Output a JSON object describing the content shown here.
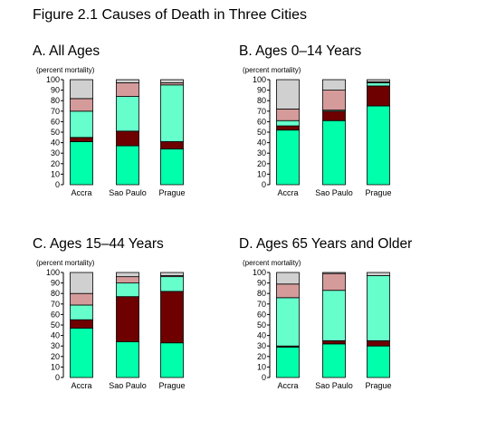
{
  "figure_title": "Figure 2.1 Causes of Death in Three Cities",
  "colors": {
    "bottom": "#00ffaa",
    "dark": "#6e0000",
    "mid": "#66ffcc",
    "pink": "#d59b9b",
    "top": "#d0d0d0"
  },
  "chart_data": [
    {
      "type": "bar",
      "title": "A. All Ages",
      "ylabel": "(percent mortality)",
      "ylim": [
        0,
        100
      ],
      "yticks": [
        "0",
        "10",
        "20",
        "30",
        "40",
        "50",
        "60",
        "70",
        "80",
        "90",
        "100"
      ],
      "categories": [
        "Accra",
        "Sao Paulo",
        "Prague"
      ],
      "stacked": true,
      "series": [
        {
          "color": "bottom",
          "values": [
            41,
            37,
            34
          ]
        },
        {
          "color": "dark",
          "values": [
            4,
            14,
            7
          ]
        },
        {
          "color": "mid",
          "values": [
            25,
            33,
            54
          ]
        },
        {
          "color": "pink",
          "values": [
            12,
            13,
            2
          ]
        },
        {
          "color": "top",
          "values": [
            18,
            3,
            3
          ]
        }
      ]
    },
    {
      "type": "bar",
      "title": "B. Ages 0–14 Years",
      "ylabel": "(percent mortality)",
      "ylim": [
        0,
        100
      ],
      "yticks": [
        "0",
        "10",
        "20",
        "30",
        "40",
        "50",
        "60",
        "70",
        "80",
        "90",
        "100"
      ],
      "categories": [
        "Accra",
        "Sao Paulo",
        "Prague"
      ],
      "stacked": true,
      "series": [
        {
          "color": "bottom",
          "values": [
            52,
            61,
            75
          ]
        },
        {
          "color": "dark",
          "values": [
            4,
            9,
            19
          ]
        },
        {
          "color": "mid",
          "values": [
            5,
            1,
            3
          ]
        },
        {
          "color": "pink",
          "values": [
            11,
            19,
            1
          ]
        },
        {
          "color": "top",
          "values": [
            28,
            10,
            2
          ]
        }
      ]
    },
    {
      "type": "bar",
      "title": "C. Ages 15–44 Years",
      "ylabel": "(percent mortality)",
      "ylim": [
        0,
        100
      ],
      "yticks": [
        "0",
        "10",
        "20",
        "30",
        "40",
        "50",
        "60",
        "70",
        "80",
        "90",
        "100"
      ],
      "categories": [
        "Accra",
        "Sao Paulo",
        "Prague"
      ],
      "stacked": true,
      "series": [
        {
          "color": "bottom",
          "values": [
            47,
            34,
            33
          ]
        },
        {
          "color": "dark",
          "values": [
            8,
            43,
            49
          ]
        },
        {
          "color": "mid",
          "values": [
            14,
            13,
            14
          ]
        },
        {
          "color": "pink",
          "values": [
            11,
            6,
            1
          ]
        },
        {
          "color": "top",
          "values": [
            20,
            4,
            3
          ]
        }
      ]
    },
    {
      "type": "bar",
      "title": "D. Ages 65 Years and Older",
      "ylabel": "(percent mortality)",
      "ylim": [
        0,
        100
      ],
      "yticks": [
        "0",
        "10",
        "20",
        "30",
        "40",
        "50",
        "60",
        "70",
        "80",
        "90",
        "100"
      ],
      "categories": [
        "Accra",
        "Sao Paulo",
        "Prague"
      ],
      "stacked": true,
      "series": [
        {
          "color": "bottom",
          "values": [
            29,
            32,
            30
          ]
        },
        {
          "color": "dark",
          "values": [
            1,
            3,
            5
          ]
        },
        {
          "color": "mid",
          "values": [
            46,
            48,
            62
          ]
        },
        {
          "color": "pink",
          "values": [
            13,
            16,
            0
          ]
        },
        {
          "color": "top",
          "values": [
            11,
            1,
            3
          ]
        }
      ]
    }
  ]
}
